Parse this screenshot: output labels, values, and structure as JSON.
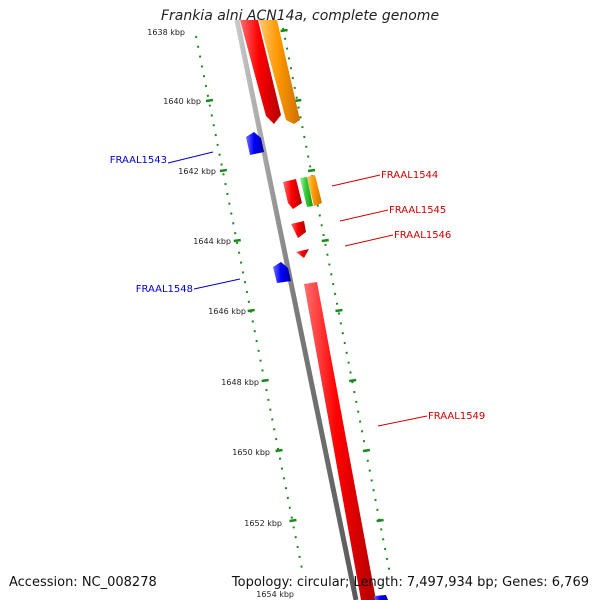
{
  "title": "Frankia alni ACN14a, complete genome",
  "footer": {
    "accession": "Accession: NC_008278",
    "topology": "Topology: circular; Length: 7,497,934 bp; Genes: 6,769"
  },
  "ruler": {
    "labels": [
      "1638 kbp",
      "1640 kbp",
      "1642 kbp",
      "1644 kbp",
      "1646 kbp",
      "1648 kbp",
      "1650 kbp",
      "1652 kbp",
      "1654 kbp"
    ]
  },
  "genes": [
    {
      "id": "FRAAL1543",
      "color": "#0000cc"
    },
    {
      "id": "FRAAL1544",
      "color": "#cc0000"
    },
    {
      "id": "FRAAL1545",
      "color": "#cc0000"
    },
    {
      "id": "FRAAL1546",
      "color": "#cc0000"
    },
    {
      "id": "FRAAL1548",
      "color": "#0000cc"
    },
    {
      "id": "FRAAL1549",
      "color": "#cc0000"
    }
  ],
  "colors": {
    "backbone": "#808080",
    "forward_gene": "#ff0000",
    "reverse_gene": "#0000ff",
    "orange_gene": "#ff9900",
    "green_gene": "#33cc33",
    "tick_marks": "#1a8a1a"
  }
}
